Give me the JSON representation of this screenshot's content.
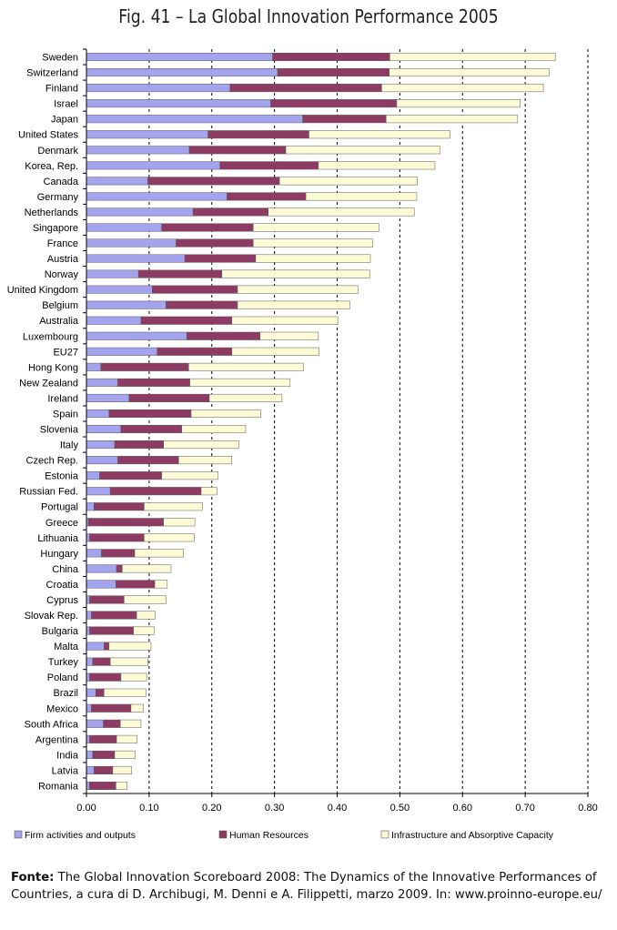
{
  "chart_data": {
    "type": "bar",
    "orientation": "horizontal",
    "stacked": true,
    "title": "Fig. 41 – La Global Innovation Performance 2005",
    "xlim": [
      0,
      0.8
    ],
    "xticks": [
      "0.00",
      "0.10",
      "0.20",
      "0.30",
      "0.40",
      "0.50",
      "0.60",
      "0.70",
      "0.80"
    ],
    "grid": "vertical-dashed",
    "legend_position": "bottom",
    "categories": [
      "Sweden",
      "Switzerland",
      "Finland",
      "Israel",
      "Japan",
      "United States",
      "Denmark",
      "Korea, Rep.",
      "Canada",
      "Germany",
      "Netherlands",
      "Singapore",
      "France",
      "Austria",
      "Norway",
      "United Kingdom",
      "Belgium",
      "Australia",
      "Luxembourg",
      "EU27",
      "Hong Kong",
      "New Zealand",
      "Ireland",
      "Spain",
      "Slovenia",
      "Italy",
      "Czech Rep.",
      "Estonia",
      "Russian Fed.",
      "Portugal",
      "Greece",
      "Lithuania",
      "Hungary",
      "China",
      "Croatia",
      "Cyprus",
      "Slovak Rep.",
      "Bulgaria",
      "Malta",
      "Turkey",
      "Poland",
      "Brazil",
      "Mexico",
      "South Africa",
      "Argentina",
      "India",
      "Latvia",
      "Romania"
    ],
    "series": [
      {
        "name": "Firm activities and outputs",
        "color": "#a3a3ee",
        "values": [
          0.297,
          0.305,
          0.229,
          0.294,
          0.345,
          0.194,
          0.164,
          0.213,
          0.098,
          0.224,
          0.17,
          0.12,
          0.143,
          0.157,
          0.083,
          0.105,
          0.127,
          0.087,
          0.16,
          0.113,
          0.023,
          0.05,
          0.068,
          0.036,
          0.055,
          0.045,
          0.05,
          0.021,
          0.038,
          0.012,
          0.003,
          0.005,
          0.024,
          0.048,
          0.047,
          0.005,
          0.008,
          0.005,
          0.028,
          0.01,
          0.005,
          0.015,
          0.008,
          0.027,
          0.005,
          0.01,
          0.012,
          0.005
        ]
      },
      {
        "name": "Human Resources",
        "color": "#8e3b63",
        "values": [
          0.187,
          0.178,
          0.242,
          0.201,
          0.133,
          0.161,
          0.154,
          0.157,
          0.21,
          0.126,
          0.12,
          0.146,
          0.123,
          0.113,
          0.133,
          0.136,
          0.114,
          0.145,
          0.117,
          0.119,
          0.14,
          0.115,
          0.128,
          0.131,
          0.097,
          0.078,
          0.097,
          0.099,
          0.145,
          0.08,
          0.12,
          0.087,
          0.053,
          0.009,
          0.062,
          0.055,
          0.072,
          0.07,
          0.008,
          0.028,
          0.05,
          0.013,
          0.063,
          0.027,
          0.043,
          0.035,
          0.03,
          0.042
        ]
      },
      {
        "name": "Infrastructure and Absorptive Capacity",
        "color": "#fdfad6",
        "values": [
          0.264,
          0.255,
          0.258,
          0.197,
          0.21,
          0.225,
          0.246,
          0.186,
          0.22,
          0.177,
          0.233,
          0.201,
          0.191,
          0.183,
          0.236,
          0.192,
          0.179,
          0.169,
          0.093,
          0.139,
          0.183,
          0.16,
          0.116,
          0.111,
          0.102,
          0.12,
          0.085,
          0.09,
          0.025,
          0.093,
          0.05,
          0.08,
          0.078,
          0.078,
          0.02,
          0.067,
          0.03,
          0.033,
          0.067,
          0.06,
          0.041,
          0.067,
          0.02,
          0.033,
          0.033,
          0.033,
          0.03,
          0.018
        ]
      }
    ]
  },
  "caption": {
    "label": "Fonte:",
    "text": " The Global Innovation Scoreboard 2008: The Dynamics of the Innovative Performances of Countries, a cura di D. Archibugi, M. Denni e A. Filippetti, marzo 2009. In: www.proinno-europe.eu/"
  }
}
